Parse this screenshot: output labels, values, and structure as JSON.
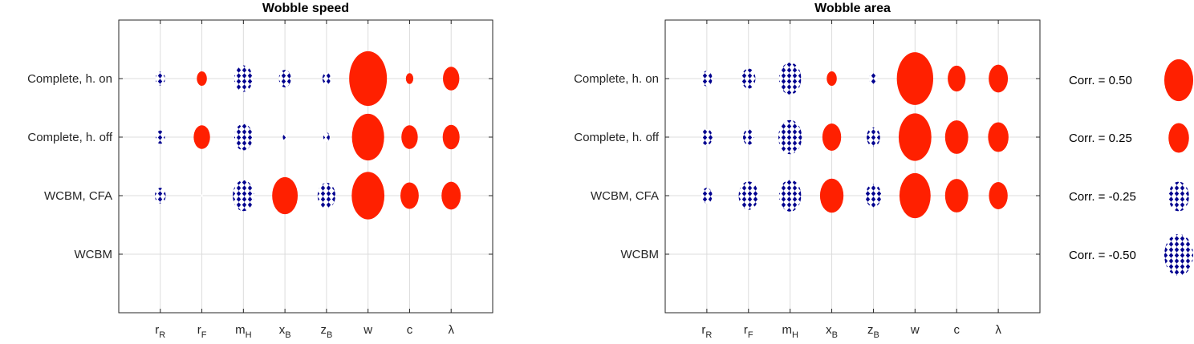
{
  "chart_data": [
    {
      "type": "bubble-matrix",
      "title": "Wobble speed",
      "xlim": [
        0,
        9
      ],
      "ylim": [
        0,
        5
      ],
      "grid": true,
      "xticks": [
        {
          "main": "r",
          "sub": "R"
        },
        {
          "main": "r",
          "sub": "F"
        },
        {
          "main": "m",
          "sub": "H"
        },
        {
          "main": "x",
          "sub": "B"
        },
        {
          "main": "z",
          "sub": "B"
        },
        {
          "main": "w",
          "sub": ""
        },
        {
          "main": "c",
          "sub": ""
        },
        {
          "main": "λ",
          "sub": ""
        }
      ],
      "rows": [
        "Complete, h. on",
        "Complete, h. off",
        "WCBM, CFA",
        "WCBM"
      ],
      "values": [
        [
          -0.055,
          0.06,
          -0.2,
          -0.087,
          -0.04,
          0.85,
          0.033,
          0.16
        ],
        [
          -0.05,
          0.16,
          -0.2,
          -0.011,
          -0.025,
          0.62,
          0.16,
          0.17
        ],
        [
          -0.07,
          -0.002,
          -0.27,
          0.39,
          -0.19,
          0.64,
          0.2,
          0.22
        ],
        [
          null,
          null,
          null,
          null,
          null,
          null,
          null,
          null
        ]
      ]
    },
    {
      "type": "bubble-matrix",
      "title": "Wobble area",
      "xlim": [
        0,
        9
      ],
      "ylim": [
        0,
        5
      ],
      "grid": true,
      "xticks": [
        {
          "main": "r",
          "sub": "R"
        },
        {
          "main": "r",
          "sub": "F"
        },
        {
          "main": "m",
          "sub": "H"
        },
        {
          "main": "x",
          "sub": "B"
        },
        {
          "main": "z",
          "sub": "B"
        },
        {
          "main": "w",
          "sub": ""
        },
        {
          "main": "c",
          "sub": ""
        },
        {
          "main": "λ",
          "sub": ""
        }
      ],
      "rows": [
        "Complete, h. on",
        "Complete, h. off",
        "WCBM, CFA",
        "WCBM"
      ],
      "values": [
        [
          -0.07,
          -0.115,
          -0.29,
          0.06,
          -0.04,
          0.79,
          0.19,
          0.22
        ],
        [
          -0.075,
          -0.07,
          -0.33,
          0.21,
          -0.107,
          0.64,
          0.32,
          0.25
        ],
        [
          -0.07,
          -0.23,
          -0.29,
          0.33,
          -0.15,
          0.58,
          0.32,
          0.21
        ],
        [
          null,
          null,
          null,
          null,
          null,
          null,
          null,
          null
        ]
      ]
    }
  ],
  "legend": {
    "placement": "right",
    "entries": [
      {
        "label": "Corr. = 0.50",
        "value": 0.5
      },
      {
        "label": "Corr. = 0.25",
        "value": 0.25
      },
      {
        "label": "Corr. = -0.25",
        "value": -0.25
      },
      {
        "label": "Corr. = -0.50",
        "value": -0.5
      }
    ]
  },
  "colors": {
    "positive": "#ff2000",
    "negative": "#00008f",
    "grid": "#dcdcdc"
  }
}
